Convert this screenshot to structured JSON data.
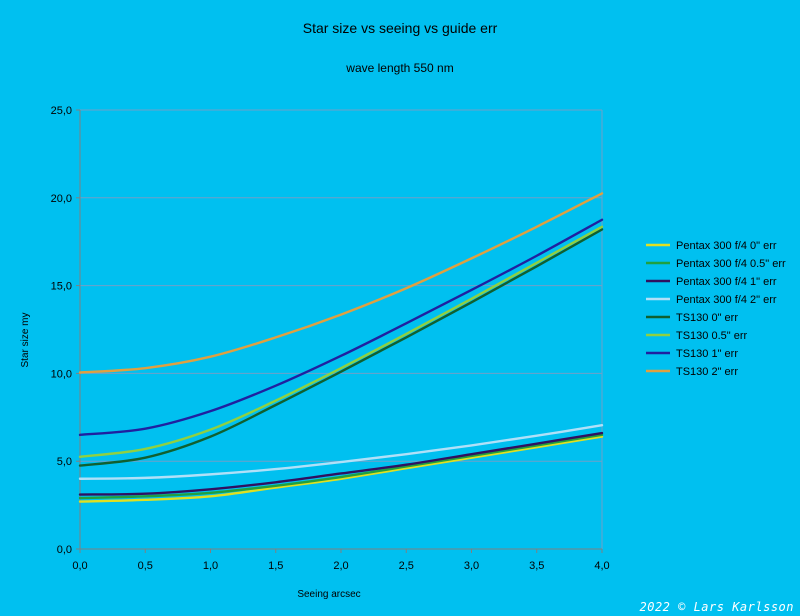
{
  "chart_data": {
    "type": "line",
    "title": "Star size vs seeing vs guide err",
    "subtitle": "wave length 550 nm",
    "xlabel": "Seeing arcsec",
    "ylabel": "Star size my",
    "xlim": [
      0,
      4
    ],
    "ylim": [
      0,
      25
    ],
    "x_ticks": [
      "0,0",
      "0,5",
      "1,0",
      "1,5",
      "2,0",
      "2,5",
      "3,0",
      "3,5",
      "4,0"
    ],
    "y_ticks": [
      "0,0",
      "5,0",
      "10,0",
      "15,0",
      "20,0",
      "25,0"
    ],
    "grid": "horizontal",
    "legend": "right",
    "x": [
      0,
      0.5,
      1.0,
      1.5,
      2.0,
      2.5,
      3.0,
      3.5,
      4.0
    ],
    "series": [
      {
        "name": "Pentax 300 f/4 0\" err",
        "color": "#e0e020",
        "values": [
          2.7,
          2.8,
          3.0,
          3.5,
          4.0,
          4.6,
          5.2,
          5.8,
          6.4
        ]
      },
      {
        "name": "Pentax 300 f/4 0.5\" err",
        "color": "#20a040",
        "values": [
          2.9,
          3.0,
          3.2,
          3.6,
          4.1,
          4.7,
          5.3,
          5.9,
          6.5
        ]
      },
      {
        "name": "Pentax 300 f/4 1\" err",
        "color": "#301060",
        "values": [
          3.1,
          3.15,
          3.4,
          3.8,
          4.3,
          4.8,
          5.4,
          6.0,
          6.6
        ]
      },
      {
        "name": "Pentax 300 f/4 2\" err",
        "color": "#b0e0f8",
        "values": [
          4.0,
          4.05,
          4.25,
          4.55,
          4.95,
          5.4,
          5.9,
          6.45,
          7.05
        ]
      },
      {
        "name": "TS130 0\" err",
        "color": "#106030",
        "values": [
          4.75,
          5.2,
          6.4,
          8.2,
          10.1,
          12.05,
          14.05,
          16.1,
          18.2
        ]
      },
      {
        "name": "TS130 0.5\" err",
        "color": "#90d040",
        "values": [
          5.25,
          5.7,
          6.8,
          8.45,
          10.3,
          12.25,
          14.25,
          16.3,
          18.35
        ]
      },
      {
        "name": "TS130 1\" err",
        "color": "#2020a0",
        "values": [
          6.5,
          6.85,
          7.85,
          9.3,
          11.0,
          12.85,
          14.75,
          16.7,
          18.75
        ]
      },
      {
        "name": "TS130 2\" err",
        "color": "#e0a040",
        "values": [
          10.05,
          10.3,
          10.95,
          12.05,
          13.35,
          14.85,
          16.55,
          18.35,
          20.25
        ]
      }
    ]
  },
  "watermark": "2022 © Lars Karlsson",
  "colors": {
    "background": "#00c0f0",
    "grid": "#70a0c8",
    "axis": "#808080"
  }
}
